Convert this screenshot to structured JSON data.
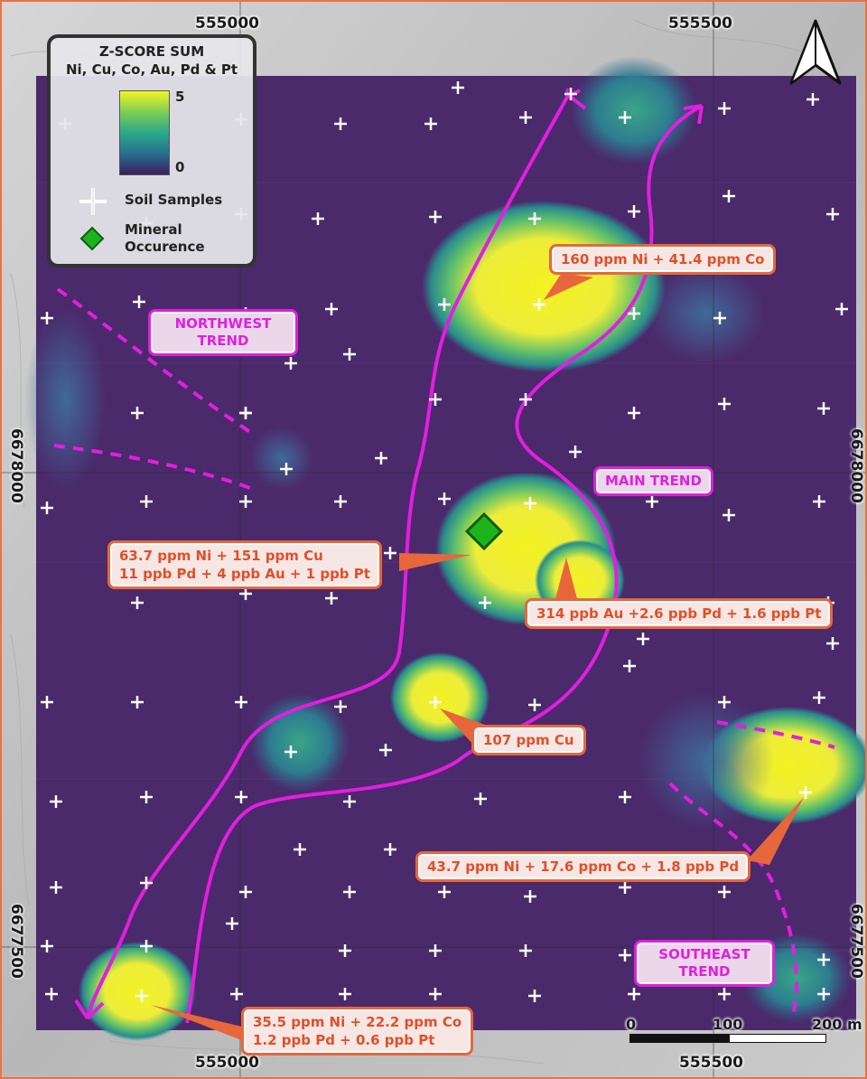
{
  "legend": {
    "title_line1": "Z-SCORE SUM",
    "title_line2": "Ni, Cu, Co, Au, Pd & Pt",
    "ramp_max": "5",
    "ramp_min": "0",
    "ramp_colors": [
      "#f4f423",
      "#7ccf55",
      "#2aa889",
      "#26708e",
      "#3e1d5e"
    ],
    "soil_samples_label": "Soil Samples",
    "mineral_label_line1": "Mineral",
    "mineral_label_line2": "Occurence"
  },
  "coordinates": {
    "top_left": "555000",
    "top_right": "555500",
    "bottom_left": "555000",
    "bottom_right": "555500",
    "left_upper": "6678000",
    "left_lower": "6677500",
    "right_upper": "6678000",
    "right_lower": "6677500"
  },
  "trends": {
    "northwest": "NORTHWEST TREND",
    "main": "MAIN TREND",
    "southeast": "SOUTHEAST TREND"
  },
  "callouts": {
    "north": "160 ppm Ni + 41.4 ppm Co",
    "center_line1": "63.7 ppm Ni + 151 ppm Cu",
    "center_line2": "11 ppb Pd + 4 ppb Au + 1 ppb Pt",
    "gold": "314 ppb Au +2.6 ppb Pd + 1.6 ppb Pt",
    "copper": "107 ppm Cu",
    "southeast": "43.7 ppm Ni + 17.6 ppm Co + 1.8 ppb Pd",
    "southwest_line1": "35.5 ppm Ni + 22.2 ppm Co",
    "southwest_line2": "1.2 ppb Pd + 0.6 ppb Pt"
  },
  "scalebar": {
    "label_0": "0",
    "label_100": "100",
    "label_200": "200 m"
  },
  "colors": {
    "trend_magenta": "#e21ee0",
    "callout_orange": "#e8663c",
    "background_purple": "#4a2a6b",
    "mineral_green": "#1db31d"
  },
  "icons": {
    "north_arrow": "north-arrow-icon",
    "soil_sample": "plus-icon",
    "mineral": "diamond-icon"
  }
}
